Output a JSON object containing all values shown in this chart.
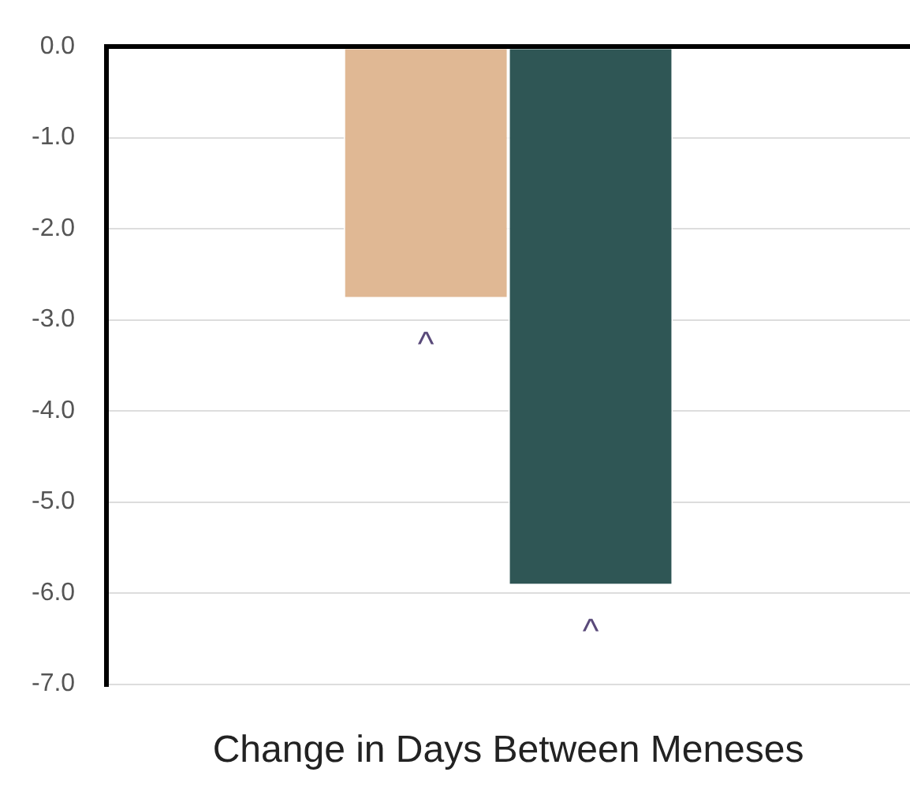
{
  "chart_data": {
    "type": "bar",
    "xlabel": "Change in Days Between Meneses",
    "categories": [
      null
    ],
    "series": [
      {
        "color": "#e0b894",
        "values": [
          -2.75
        ],
        "value_labels": [
          "^"
        ]
      },
      {
        "color": "#2f5655",
        "values": [
          -5.9
        ],
        "value_labels": [
          "^"
        ]
      }
    ],
    "ylim": [
      -7,
      0
    ],
    "yticks": [
      {
        "value": 0,
        "label": "0.0"
      },
      {
        "value": -1,
        "label": "-1.0"
      },
      {
        "value": -2,
        "label": "-2.0"
      },
      {
        "value": -3,
        "label": "-3.0"
      },
      {
        "value": -4,
        "label": "-4.0"
      },
      {
        "value": -5,
        "label": "-5.0"
      },
      {
        "value": -6,
        "label": "-6.0"
      },
      {
        "value": -7,
        "label": "-7.0"
      }
    ],
    "grid": "y"
  }
}
